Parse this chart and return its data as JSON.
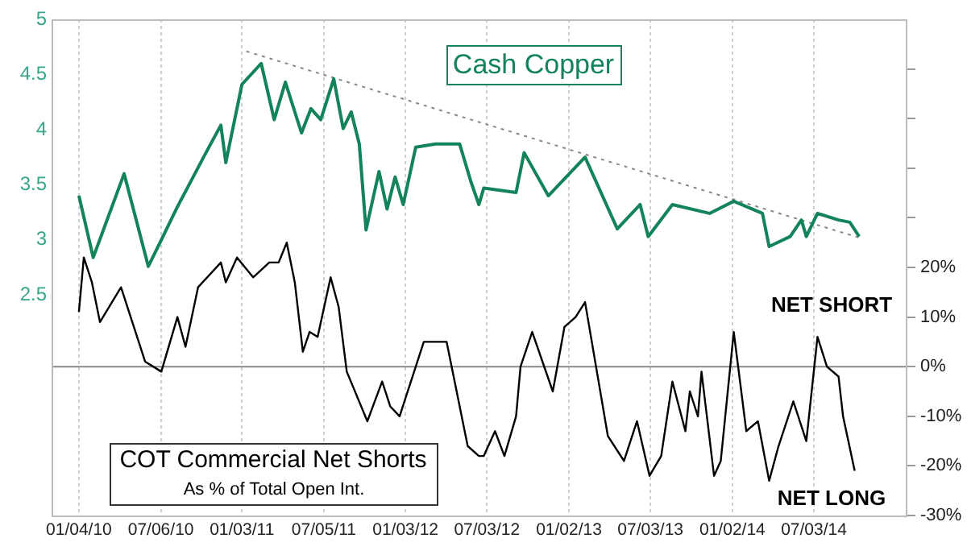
{
  "chart_data": {
    "type": "line",
    "xlim": [
      "2009-11-04",
      "2015-01-24"
    ],
    "xticks": [
      {
        "value": "2010-01-04",
        "label": "01/04/10"
      },
      {
        "value": "2010-07-06",
        "label": "07/06/10"
      },
      {
        "value": "2011-01-03",
        "label": "01/03/11"
      },
      {
        "value": "2011-07-05",
        "label": "07/05/11"
      },
      {
        "value": "2012-01-03",
        "label": "01/03/12"
      },
      {
        "value": "2012-07-03",
        "label": "07/03/12"
      },
      {
        "value": "2013-01-02",
        "label": "01/02/13"
      },
      {
        "value": "2013-07-03",
        "label": "07/03/13"
      },
      {
        "value": "2014-01-02",
        "label": "01/02/14"
      },
      {
        "value": "2014-07-03",
        "label": "07/03/14"
      }
    ],
    "ylim": [
      0.5,
      5
    ],
    "yticks": [
      2.5,
      3,
      3.5,
      4,
      4.5,
      5
    ],
    "y2lim": [
      -30,
      70
    ],
    "y2ticks": [
      {
        "value": -30,
        "label": "-30%"
      },
      {
        "value": -20,
        "label": "-20%"
      },
      {
        "value": -10,
        "label": "-10%"
      },
      {
        "value": 0,
        "label": "0%"
      },
      {
        "value": 10,
        "label": "10%"
      },
      {
        "value": 20,
        "label": "20%"
      },
      {
        "value": 30,
        "label": null
      },
      {
        "value": 40,
        "label": null
      },
      {
        "value": 50,
        "label": null
      },
      {
        "value": 60,
        "label": null
      }
    ],
    "grid": "x",
    "legend": false,
    "marker": "none",
    "ref_lines": [
      {
        "axis": "y2",
        "value": 0,
        "color": "#888888"
      }
    ],
    "annotations": [
      "As % of Total Open Int.",
      "NET SHORT",
      "NET LONG"
    ],
    "series": [
      {
        "name": "Cash Copper",
        "color": "#13835a",
        "x": [
          "2010-01-04",
          "2010-02-05",
          "2010-04-15",
          "2010-06-08",
          "2010-07-07",
          "2010-08-12",
          "2010-10-12",
          "2010-11-17",
          "2010-11-28",
          "2011-01-03",
          "2011-02-15",
          "2011-03-16",
          "2011-04-10",
          "2011-05-16",
          "2011-06-06",
          "2011-06-28",
          "2011-07-27",
          "2011-08-17",
          "2011-09-04",
          "2011-09-22",
          "2011-10-07",
          "2011-11-05",
          "2011-11-23",
          "2011-12-11",
          "2011-12-29",
          "2012-01-26",
          "2012-03-10",
          "2012-05-03",
          "2012-05-28",
          "2012-06-15",
          "2012-06-26",
          "2012-09-06",
          "2012-09-24",
          "2012-11-17",
          "2013-02-07",
          "2013-04-20",
          "2013-06-10",
          "2013-06-28",
          "2013-08-21",
          "2013-11-12",
          "2014-01-05",
          "2014-03-10",
          "2014-03-25",
          "2014-05-11",
          "2014-06-05",
          "2014-06-16",
          "2014-07-11",
          "2014-08-27",
          "2014-09-21",
          "2014-10-12"
        ],
        "values": [
          3.4,
          2.84,
          3.6,
          2.76,
          3.0,
          3.3,
          3.77,
          4.04,
          3.7,
          4.41,
          4.6,
          4.09,
          4.43,
          3.97,
          4.19,
          4.09,
          4.46,
          4.01,
          4.16,
          3.87,
          3.09,
          3.62,
          3.28,
          3.57,
          3.32,
          3.84,
          3.87,
          3.87,
          3.53,
          3.32,
          3.47,
          3.43,
          3.79,
          3.4,
          3.75,
          3.1,
          3.32,
          3.03,
          3.32,
          3.24,
          3.35,
          3.24,
          2.94,
          3.03,
          3.18,
          3.03,
          3.24,
          3.18,
          3.16,
          3.03
        ]
      },
      {
        "type": "line",
        "line_style": "dotted",
        "color": "#888888",
        "x": [
          "2011-01-13",
          "2014-10-20"
        ],
        "values": [
          4.71,
          3.01
        ]
      },
      {
        "name": "COT Commercial Net Shorts",
        "axis": "y2",
        "color": "#000000",
        "x": [
          "2010-01-04",
          "2010-01-15",
          "2010-02-02",
          "2010-02-20",
          "2010-04-08",
          "2010-06-01",
          "2010-07-07",
          "2010-08-12",
          "2010-08-30",
          "2010-09-27",
          "2010-11-17",
          "2010-11-28",
          "2010-12-23",
          "2011-01-28",
          "2011-03-05",
          "2011-03-26",
          "2011-04-13",
          "2011-05-01",
          "2011-05-19",
          "2011-06-03",
          "2011-06-21",
          "2011-07-20",
          "2011-08-07",
          "2011-08-25",
          "2011-10-10",
          "2011-11-12",
          "2011-11-30",
          "2011-12-21",
          "2012-02-13",
          "2012-04-04",
          "2012-05-21",
          "2012-06-15",
          "2012-06-26",
          "2012-07-21",
          "2012-08-11",
          "2012-09-06",
          "2012-09-16",
          "2012-10-12",
          "2012-11-27",
          "2012-12-23",
          "2013-01-17",
          "2013-02-07",
          "2013-03-30",
          "2013-05-05",
          "2013-06-03",
          "2013-07-01",
          "2013-07-27",
          "2013-08-21",
          "2013-09-19",
          "2013-09-29",
          "2013-10-17",
          "2013-10-25",
          "2013-11-22",
          "2013-12-07",
          "2014-01-05",
          "2014-02-02",
          "2014-02-28",
          "2014-03-25",
          "2014-04-15",
          "2014-05-18",
          "2014-06-16",
          "2014-07-11",
          "2014-08-01",
          "2014-08-27",
          "2014-09-06",
          "2014-10-02"
        ],
        "values": [
          11,
          22,
          17,
          9,
          16,
          1,
          -1,
          10,
          4,
          16,
          21,
          17,
          22,
          18,
          21,
          21,
          25,
          17,
          3,
          7,
          6,
          18,
          12,
          -1,
          -11,
          -3,
          -8,
          -10,
          5,
          5,
          -16,
          -18,
          -18,
          -13,
          -18,
          -10,
          0,
          7,
          -5,
          8,
          10,
          13,
          -14,
          -19,
          -11,
          -22,
          -18,
          -3,
          -13,
          -5,
          -10,
          -1,
          -22,
          -19,
          7,
          -13,
          -11,
          -23,
          -16,
          -7,
          -15,
          6,
          0,
          -2,
          -10,
          -21
        ]
      }
    ]
  }
}
